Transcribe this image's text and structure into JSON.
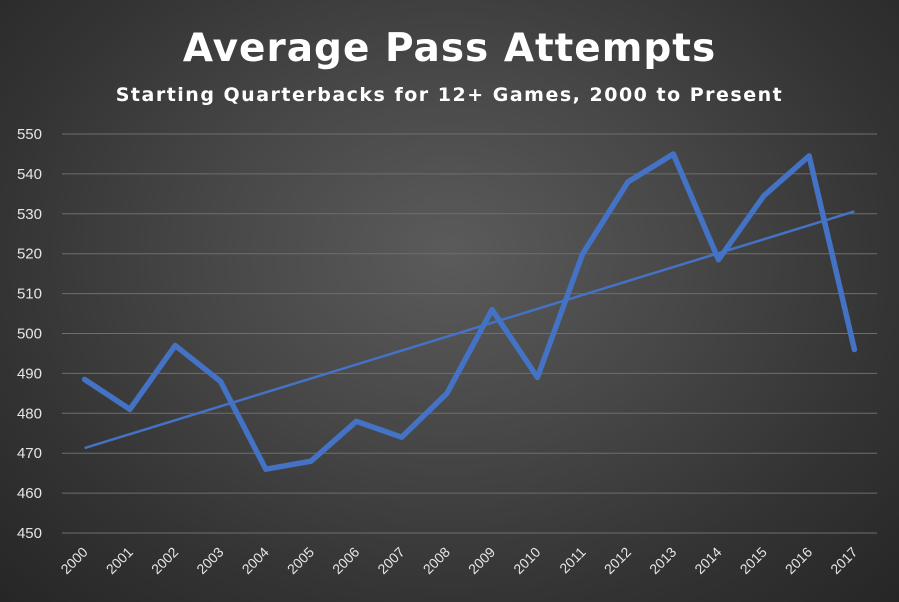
{
  "chart_data": {
    "type": "line",
    "title": "Average Pass Attempts",
    "subtitle": "Starting Quarterbacks for 12+ Games, 2000 to Present",
    "xlabel": "",
    "ylabel": "",
    "ylim": [
      450,
      550
    ],
    "yticks": [
      "450",
      "460",
      "470",
      "480",
      "490",
      "500",
      "510",
      "520",
      "530",
      "540",
      "550"
    ],
    "categories": [
      "2000",
      "2001",
      "2002",
      "2003",
      "2004",
      "2005",
      "2006",
      "2007",
      "2008",
      "2009",
      "2010",
      "2011",
      "2012",
      "2013",
      "2014",
      "2015",
      "2016",
      "2017"
    ],
    "series": [
      {
        "values": [
          488.5,
          481,
          497,
          488,
          466,
          468,
          478,
          474,
          485,
          506,
          489,
          520,
          538,
          545,
          518.5,
          534.5,
          544.5,
          496
        ],
        "color": "#4472c4"
      }
    ],
    "trendline": {
      "type": "linear",
      "color": "#4472c4"
    },
    "grid": true,
    "gridline_color": "#6e6e6e",
    "legend": "none",
    "background_color": "#474747"
  }
}
